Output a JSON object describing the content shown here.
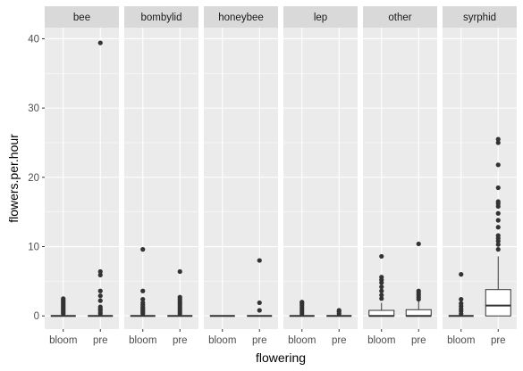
{
  "chart_data": {
    "type": "boxplot",
    "facet_by": "insect group",
    "xlabel": "flowering",
    "ylabel": "flowers.per.hour",
    "categories": [
      "bloom",
      "pre"
    ],
    "ylim": [
      -1.9,
      41.6
    ],
    "yticks": [
      0,
      10,
      20,
      30,
      40
    ],
    "grid": true,
    "colors": {
      "panel_bg": "#ebebeb",
      "strip_bg": "#d9d9d9",
      "grid_major": "#ffffff",
      "box_fill": "#ffffff",
      "box_line": "#333333",
      "outlier": "#333333"
    },
    "facets": [
      {
        "name": "bee",
        "boxes": [
          {
            "category": "bloom",
            "min": 0,
            "q1": 0,
            "median": 0,
            "q3": 0,
            "max": 0,
            "outliers": [
              0.3,
              0.5,
              0.7,
              0.9,
              1.1,
              1.3,
              1.5,
              1.7,
              1.9,
              2.1,
              2.3,
              2.5
            ]
          },
          {
            "category": "pre",
            "min": 0,
            "q1": 0,
            "median": 0,
            "q3": 0,
            "max": 0,
            "outliers": [
              0.3,
              0.5,
              0.8,
              1.0,
              1.3,
              2.2,
              2.9,
              3.6,
              5.9,
              6.4,
              39.4
            ]
          }
        ]
      },
      {
        "name": "bombylid",
        "boxes": [
          {
            "category": "bloom",
            "min": 0,
            "q1": 0,
            "median": 0,
            "q3": 0,
            "max": 0,
            "outliers": [
              0.3,
              0.5,
              0.7,
              0.9,
              1.1,
              1.3,
              1.6,
              1.9,
              2.4,
              3.6,
              9.6
            ]
          },
          {
            "category": "pre",
            "min": 0,
            "q1": 0,
            "median": 0,
            "q3": 0,
            "max": 0,
            "outliers": [
              0.3,
              0.6,
              0.9,
              1.2,
              1.5,
              1.8,
              2.1,
              2.4,
              2.7,
              6.4
            ]
          }
        ]
      },
      {
        "name": "honeybee",
        "boxes": [
          {
            "category": "bloom",
            "min": 0,
            "q1": 0,
            "median": 0,
            "q3": 0,
            "max": 0,
            "outliers": []
          },
          {
            "category": "pre",
            "min": 0,
            "q1": 0,
            "median": 0,
            "q3": 0,
            "max": 0,
            "outliers": [
              0.8,
              1.9,
              8.0
            ]
          }
        ]
      },
      {
        "name": "lep",
        "boxes": [
          {
            "category": "bloom",
            "min": 0,
            "q1": 0,
            "median": 0,
            "q3": 0,
            "max": 0,
            "outliers": [
              0.3,
              0.6,
              0.9,
              1.2,
              1.5,
              1.8,
              2.0
            ]
          },
          {
            "category": "pre",
            "min": 0,
            "q1": 0,
            "median": 0,
            "q3": 0,
            "max": 0,
            "outliers": [
              0.3,
              0.6,
              0.8
            ]
          }
        ]
      },
      {
        "name": "other",
        "boxes": [
          {
            "category": "bloom",
            "min": 0,
            "q1": 0,
            "median": 0,
            "q3": 0.8,
            "max": 1.9,
            "outliers": [
              2.5,
              3.0,
              3.6,
              4.2,
              4.8,
              5.2,
              5.6,
              8.6
            ]
          },
          {
            "category": "pre",
            "min": 0,
            "q1": 0,
            "median": 0,
            "q3": 0.9,
            "max": 2.1,
            "outliers": [
              2.4,
              2.7,
              3.0,
              3.3,
              3.6,
              10.4
            ]
          }
        ]
      },
      {
        "name": "syrphid",
        "boxes": [
          {
            "category": "bloom",
            "min": 0,
            "q1": 0,
            "median": 0,
            "q3": 0,
            "max": 0,
            "outliers": [
              0.3,
              0.7,
              1.0,
              1.4,
              1.8,
              2.4,
              6.0
            ]
          },
          {
            "category": "pre",
            "min": 0,
            "q1": 0,
            "median": 1.5,
            "q3": 3.8,
            "max": 8.6,
            "outliers": [
              9.6,
              10.3,
              10.8,
              11.2,
              11.6,
              12.8,
              13.8,
              14.8,
              15.8,
              16.2,
              16.5,
              18.5,
              21.8,
              25.0,
              25.5
            ]
          }
        ]
      }
    ]
  }
}
